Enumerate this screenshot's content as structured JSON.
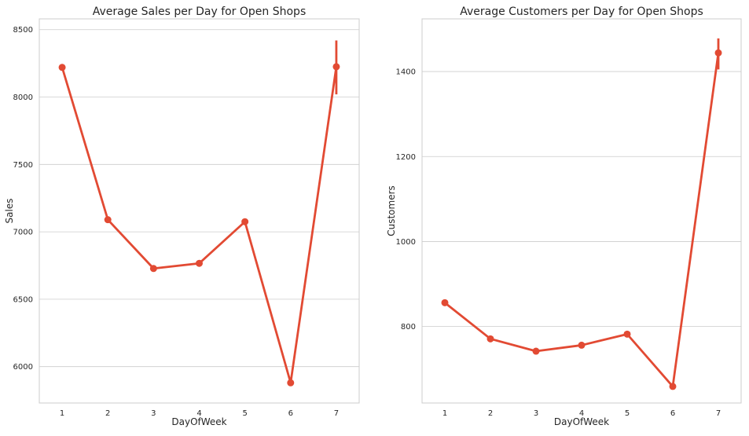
{
  "chart_data": [
    {
      "type": "line",
      "title": "Average Sales per Day for Open Shops",
      "xlabel": "DayOfWeek",
      "ylabel": "Sales",
      "categories": [
        "1",
        "2",
        "3",
        "4",
        "5",
        "6",
        "7"
      ],
      "values": [
        8220,
        7090,
        6728,
        6766,
        7075,
        5880,
        8225
      ],
      "error_bars": [
        null,
        null,
        null,
        null,
        null,
        null,
        [
          8020,
          8420
        ]
      ],
      "ylim": [
        5730,
        8580
      ],
      "yticks": [
        6000,
        6500,
        7000,
        7500,
        8000,
        8500
      ],
      "grid": true,
      "color": "#e24a33"
    },
    {
      "type": "line",
      "title": "Average Customers per Day for Open Shops",
      "xlabel": "DayOfWeek",
      "ylabel": "Customers",
      "categories": [
        "1",
        "2",
        "3",
        "4",
        "5",
        "6",
        "7"
      ],
      "values": [
        856,
        771,
        742,
        756,
        782,
        659,
        1444
      ],
      "error_bars": [
        null,
        null,
        null,
        null,
        null,
        null,
        [
          1405,
          1478
        ]
      ],
      "ylim": [
        620,
        1524
      ],
      "yticks": [
        800,
        1000,
        1200,
        1400
      ],
      "grid": true,
      "color": "#e24a33"
    }
  ]
}
